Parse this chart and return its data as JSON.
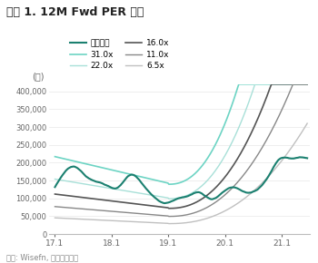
{
  "title": "그림 1. 12M Fwd PER 밴드",
  "ylabel": "(원)",
  "source": "자료: Wisefn, 하나금융투자",
  "x_ticks": [
    17.1,
    18.1,
    19.1,
    20.1,
    21.1
  ],
  "ylim": [
    0,
    420000
  ],
  "yticks": [
    0,
    50000,
    100000,
    150000,
    200000,
    250000,
    300000,
    350000,
    400000
  ],
  "legend_labels": [
    "수정주가",
    "31.0x",
    "22.0x",
    "16.0x",
    "11.0x",
    "6.5x"
  ],
  "legend_colors": [
    "#1b8070",
    "#6dd4c4",
    "#a8e0d8",
    "#555555",
    "#888888",
    "#c0c0c0"
  ],
  "legend_lws": [
    1.5,
    1.2,
    1.0,
    1.2,
    1.0,
    1.0
  ],
  "background": "#ffffff",
  "title_color": "#222222",
  "axis_color": "#bbbbbb",
  "grid_color": "#e8e8e8",
  "tick_color": "#666666"
}
